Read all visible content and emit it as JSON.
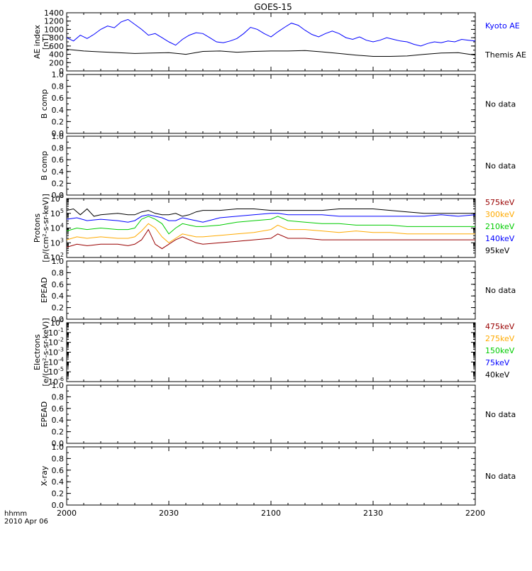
{
  "title": "GOES-15",
  "time_axis": {
    "ticks": [
      "2000",
      "2030",
      "2100",
      "2130",
      "2200"
    ],
    "label_top": "hhmm",
    "label_bottom": "2010 Apr 06",
    "start_min": 0,
    "end_min": 120
  },
  "chart_data": [
    {
      "type": "line",
      "panel": "ae",
      "ylabel": [
        "AE index",
        "[nT]"
      ],
      "ylim": [
        0,
        1400
      ],
      "yticks": [
        "0",
        "200",
        "400",
        "600",
        "800",
        "1000",
        "1200",
        "1400"
      ],
      "series": [
        {
          "name": "Kyoto AE",
          "color": "#0000ff",
          "x": [
            0,
            2,
            4,
            6,
            8,
            10,
            12,
            14,
            16,
            18,
            20,
            22,
            24,
            26,
            28,
            30,
            32,
            34,
            36,
            38,
            40,
            42,
            44,
            46,
            48,
            50,
            52,
            54,
            56,
            58,
            60,
            62,
            64,
            66,
            68,
            70,
            72,
            74,
            76,
            78,
            80,
            82,
            84,
            86,
            88,
            90,
            92,
            94,
            96,
            98,
            100,
            102,
            104,
            106,
            108,
            110,
            112,
            114,
            116,
            118,
            120
          ],
          "y": [
            800,
            720,
            860,
            780,
            880,
            1000,
            1080,
            1040,
            1180,
            1240,
            1120,
            1000,
            860,
            900,
            800,
            700,
            620,
            760,
            860,
            920,
            900,
            800,
            700,
            680,
            720,
            780,
            900,
            1050,
            1000,
            900,
            820,
            940,
            1050,
            1150,
            1100,
            980,
            880,
            820,
            900,
            960,
            900,
            800,
            760,
            820,
            740,
            700,
            740,
            800,
            760,
            720,
            700,
            640,
            600,
            660,
            700,
            680,
            720,
            700,
            760,
            740,
            720
          ]
        },
        {
          "name": "Themis AE",
          "color": "#000000",
          "x": [
            0,
            5,
            10,
            15,
            20,
            25,
            30,
            35,
            40,
            45,
            50,
            55,
            60,
            65,
            70,
            75,
            80,
            85,
            90,
            95,
            100,
            105,
            110,
            115,
            120
          ],
          "y": [
            520,
            480,
            460,
            440,
            420,
            430,
            440,
            400,
            470,
            480,
            450,
            470,
            480,
            480,
            490,
            460,
            420,
            380,
            350,
            350,
            360,
            400,
            430,
            440,
            380
          ]
        }
      ]
    },
    {
      "type": "line",
      "panel": "b1",
      "ylabel": [
        "B comp"
      ],
      "ylim": [
        0,
        1
      ],
      "yticks": [
        "0.0",
        "0.2",
        "0.4",
        "0.6",
        "0.8",
        "1.0"
      ],
      "note": "No data",
      "series": []
    },
    {
      "type": "line",
      "panel": "b2",
      "ylabel": [
        "B comp"
      ],
      "ylim": [
        0,
        1
      ],
      "yticks": [
        "0.0",
        "0.2",
        "0.4",
        "0.6",
        "0.8",
        "1.0"
      ],
      "note": "No data",
      "series": []
    },
    {
      "type": "line",
      "panel": "protons",
      "ylabel": [
        "Protons",
        "[p/(cm²-s-sr-keV)]"
      ],
      "log": true,
      "ylim_exp": [
        2,
        6
      ],
      "yticks_exp": [
        2,
        3,
        4,
        5,
        6
      ],
      "series": [
        {
          "name": "575keV",
          "color": "#990000",
          "x": [
            0,
            3,
            6,
            10,
            15,
            18,
            20,
            22,
            24,
            26,
            28,
            30,
            32,
            34,
            36,
            38,
            40,
            45,
            50,
            55,
            60,
            62,
            65,
            70,
            75,
            80,
            85,
            90,
            95,
            100,
            105,
            110,
            115,
            120
          ],
          "y": [
            2.7,
            2.9,
            2.8,
            2.9,
            2.9,
            2.8,
            2.9,
            3.2,
            3.9,
            2.9,
            2.6,
            2.9,
            3.2,
            3.4,
            3.2,
            3.0,
            2.9,
            3.0,
            3.1,
            3.2,
            3.3,
            3.6,
            3.3,
            3.3,
            3.2,
            3.2,
            3.2,
            3.2,
            3.2,
            3.2,
            3.2,
            3.2,
            3.2,
            3.2
          ]
        },
        {
          "name": "300keV",
          "color": "#ffaa00",
          "x": [
            0,
            3,
            6,
            10,
            15,
            18,
            20,
            22,
            24,
            26,
            28,
            30,
            32,
            34,
            36,
            38,
            40,
            45,
            50,
            55,
            60,
            62,
            65,
            70,
            75,
            80,
            85,
            90,
            95,
            100,
            105,
            110,
            115,
            120
          ],
          "y": [
            3.2,
            3.4,
            3.3,
            3.4,
            3.3,
            3.3,
            3.4,
            3.8,
            4.3,
            4.0,
            3.4,
            3.0,
            3.3,
            3.6,
            3.5,
            3.4,
            3.4,
            3.5,
            3.6,
            3.7,
            3.9,
            4.2,
            3.9,
            3.9,
            3.8,
            3.7,
            3.8,
            3.7,
            3.7,
            3.6,
            3.6,
            3.6,
            3.6,
            3.6
          ]
        },
        {
          "name": "210keV",
          "color": "#00cc00",
          "x": [
            0,
            3,
            6,
            10,
            15,
            18,
            20,
            22,
            24,
            26,
            28,
            30,
            32,
            34,
            36,
            38,
            40,
            45,
            50,
            55,
            60,
            62,
            65,
            70,
            75,
            80,
            85,
            90,
            95,
            100,
            105,
            110,
            115,
            120
          ],
          "y": [
            3.8,
            4.0,
            3.9,
            4.0,
            3.9,
            3.9,
            4.0,
            4.6,
            4.8,
            4.6,
            4.3,
            3.6,
            4.0,
            4.3,
            4.2,
            4.1,
            4.1,
            4.2,
            4.4,
            4.5,
            4.6,
            4.8,
            4.5,
            4.4,
            4.3,
            4.3,
            4.2,
            4.2,
            4.2,
            4.1,
            4.1,
            4.1,
            4.1,
            4.1
          ]
        },
        {
          "name": "140keV",
          "color": "#0000ff",
          "x": [
            0,
            3,
            6,
            10,
            15,
            18,
            20,
            22,
            24,
            26,
            28,
            30,
            32,
            34,
            36,
            38,
            40,
            45,
            50,
            55,
            60,
            62,
            65,
            70,
            75,
            80,
            85,
            90,
            95,
            100,
            105,
            110,
            115,
            120
          ],
          "y": [
            4.6,
            4.7,
            4.5,
            4.6,
            4.5,
            4.4,
            4.5,
            4.8,
            4.9,
            4.8,
            4.7,
            4.5,
            4.5,
            4.7,
            4.6,
            4.5,
            4.4,
            4.7,
            4.8,
            4.9,
            5.0,
            5.0,
            4.9,
            4.9,
            4.9,
            4.8,
            4.8,
            4.8,
            4.8,
            4.8,
            4.8,
            4.9,
            4.8,
            4.9
          ]
        },
        {
          "name": "95keV",
          "color": "#000000",
          "x": [
            0,
            2,
            4,
            6,
            8,
            10,
            15,
            18,
            20,
            22,
            24,
            26,
            28,
            30,
            32,
            34,
            36,
            38,
            40,
            45,
            50,
            55,
            60,
            65,
            70,
            75,
            80,
            85,
            90,
            95,
            100,
            105,
            110,
            115,
            120
          ],
          "y": [
            5.2,
            5.3,
            4.9,
            5.3,
            4.8,
            4.9,
            5.0,
            4.9,
            4.9,
            5.1,
            5.2,
            5.0,
            4.9,
            4.9,
            5.0,
            4.8,
            4.9,
            5.1,
            5.2,
            5.2,
            5.3,
            5.3,
            5.2,
            5.2,
            5.2,
            5.2,
            5.3,
            5.3,
            5.3,
            5.2,
            5.1,
            5.0,
            5.0,
            5.0,
            5.0
          ]
        }
      ]
    },
    {
      "type": "line",
      "panel": "epead1",
      "ylabel": [
        "EPEAD"
      ],
      "ylim": [
        0,
        1
      ],
      "yticks": [
        "0.0",
        "0.2",
        "0.4",
        "0.6",
        "0.8",
        "1.0"
      ],
      "note": "No data",
      "series": []
    },
    {
      "type": "line",
      "panel": "electrons",
      "ylabel": [
        "Electrons",
        "[e/(cm²-s-sr-keV)]"
      ],
      "log": true,
      "ylim_exp": [
        -6,
        0
      ],
      "yticks_exp": [
        -6,
        -5,
        -4,
        -3,
        -2,
        -1,
        0
      ],
      "series": [],
      "legend": [
        {
          "name": "475keV",
          "color": "#990000"
        },
        {
          "name": "275keV",
          "color": "#ffaa00"
        },
        {
          "name": "150keV",
          "color": "#00cc00"
        },
        {
          "name": "75keV",
          "color": "#0000ff"
        },
        {
          "name": "40keV",
          "color": "#000000"
        }
      ]
    },
    {
      "type": "line",
      "panel": "epead2",
      "ylabel": [
        "EPEAD"
      ],
      "ylim": [
        0,
        1
      ],
      "yticks": [
        "0.0",
        "0.2",
        "0.4",
        "0.6",
        "0.8",
        "1.0"
      ],
      "note": "No data",
      "series": []
    },
    {
      "type": "line",
      "panel": "xray",
      "ylabel": [
        "X-ray"
      ],
      "ylim": [
        0,
        1
      ],
      "yticks": [
        "0.0",
        "0.2",
        "0.4",
        "0.6",
        "0.8",
        "1.0"
      ],
      "note": "No data",
      "series": []
    }
  ]
}
